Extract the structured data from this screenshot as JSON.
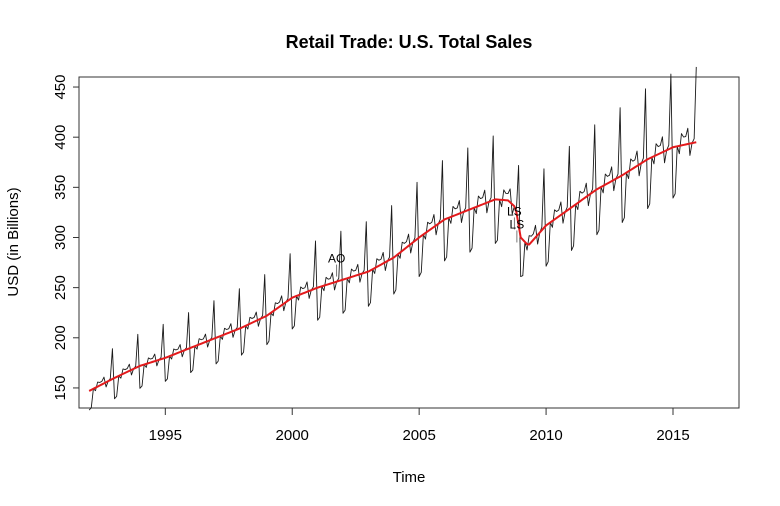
{
  "chart_data": {
    "type": "line",
    "title": "Retail Trade: U.S. Total Sales",
    "xlabel": "Time",
    "ylabel": "USD (in Billions)",
    "xlim": [
      1991.6,
      2017.6
    ],
    "ylim": [
      130,
      460
    ],
    "x_ticks": [
      1995,
      2000,
      2005,
      2010,
      2015
    ],
    "y_ticks": [
      150,
      200,
      250,
      300,
      350,
      400,
      450
    ],
    "x_tick_labels": [
      "1995",
      "2000",
      "2005",
      "2010",
      "2015"
    ],
    "y_tick_labels": [
      "150",
      "200",
      "250",
      "300",
      "350",
      "400",
      "450"
    ],
    "grid": false,
    "legend": "none",
    "monthly_start": 1992.0,
    "seasonal_factors": [
      0.87,
      0.88,
      1.0,
      0.98,
      1.03,
      1.02,
      1.02,
      1.04,
      0.97,
      1.0,
      1.01,
      1.19
    ],
    "series": [
      {
        "color": "#1a1a1a",
        "width": 0.9,
        "smooth_monthly_from_trend": true,
        "x": [
          1992.0,
          1993.0,
          1994.0,
          1995.0,
          1996.0,
          1997.0,
          1998.0,
          1999.0,
          2000.0,
          2001.0,
          2002.0,
          2003.0,
          2004.0,
          2005.0,
          2006.0,
          2007.0,
          2008.0,
          2008.5,
          2008.8,
          2009.0,
          2009.3,
          2010.0,
          2011.0,
          2012.0,
          2013.0,
          2014.0,
          2015.0,
          2015.92
        ],
        "y": [
          147,
          160,
          172,
          180,
          190,
          200,
          210,
          222,
          240,
          250,
          258,
          266,
          280,
          300,
          318,
          328,
          338,
          337,
          330,
          300,
          292,
          312,
          330,
          348,
          362,
          378,
          390,
          395
        ]
      },
      {
        "color": "#e31a1c",
        "width": 2,
        "x": [
          1992.0,
          1993.0,
          1994.0,
          1995.0,
          1996.0,
          1997.0,
          1998.0,
          1999.0,
          2000.0,
          2001.0,
          2002.0,
          2003.0,
          2004.0,
          2005.0,
          2006.0,
          2007.0,
          2008.0,
          2008.5,
          2008.8,
          2009.0,
          2009.3,
          2010.0,
          2011.0,
          2012.0,
          2013.0,
          2014.0,
          2015.0,
          2015.92
        ],
        "y": [
          147,
          160,
          172,
          180,
          190,
          200,
          210,
          222,
          240,
          250,
          258,
          266,
          280,
          300,
          318,
          328,
          338,
          337,
          330,
          300,
          292,
          312,
          330,
          348,
          362,
          378,
          390,
          395
        ]
      }
    ],
    "annotations": [
      {
        "text": "AO",
        "x": 2001.75,
        "y": 275
      },
      {
        "text": "LS",
        "x": 2008.75,
        "y": 322
      },
      {
        "text": "LS",
        "x": 2008.85,
        "y": 309
      }
    ]
  }
}
